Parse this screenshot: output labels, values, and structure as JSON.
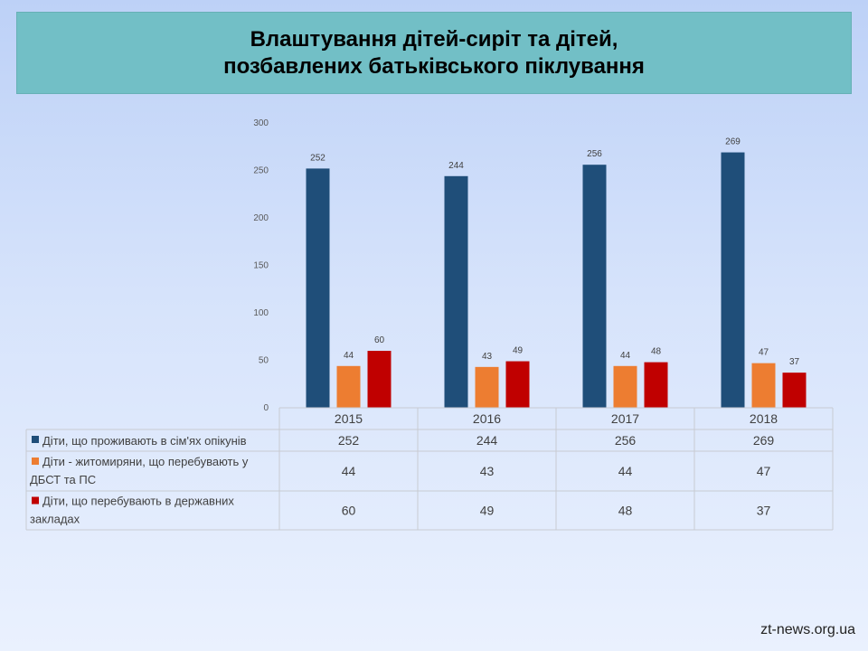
{
  "title": {
    "line1": "Влаштування дітей-сиріт та дітей,",
    "line2": "позбавлених батьківського піклування"
  },
  "watermark": "zt-news.org.ua",
  "colors": {
    "series1": "#1f4e79",
    "series2": "#ed7d31",
    "series3": "#c00000",
    "banner": "#72bfc6"
  },
  "chart_data": {
    "type": "bar",
    "title": "Влаштування дітей-сиріт та дітей, позбавлених батьківського піклування",
    "categories": [
      "2015",
      "2016",
      "2017",
      "2018"
    ],
    "series": [
      {
        "name": "Діти, що проживають в сім'ях опікунів",
        "values": [
          252,
          244,
          256,
          269
        ]
      },
      {
        "name": "Діти - житомиряни, що перебувають у ДБСТ та ПС",
        "values": [
          44,
          43,
          44,
          47
        ]
      },
      {
        "name": "Діти, що перебувають в державних закладах",
        "values": [
          60,
          49,
          48,
          37
        ]
      }
    ],
    "ylim": [
      0,
      300
    ],
    "yticks": [
      0,
      50,
      100,
      150,
      200,
      250,
      300
    ],
    "legend": "data-table",
    "grid": false
  },
  "table_rows": [
    {
      "label_lines": [
        "Діти, що проживають в сім'ях опікунів"
      ]
    },
    {
      "label_lines": [
        "Діти - житомиряни, що перебувають у",
        "ДБСТ та ПС"
      ]
    },
    {
      "label_lines": [
        "Діти, що перебувають в державних",
        "закладах"
      ]
    }
  ]
}
